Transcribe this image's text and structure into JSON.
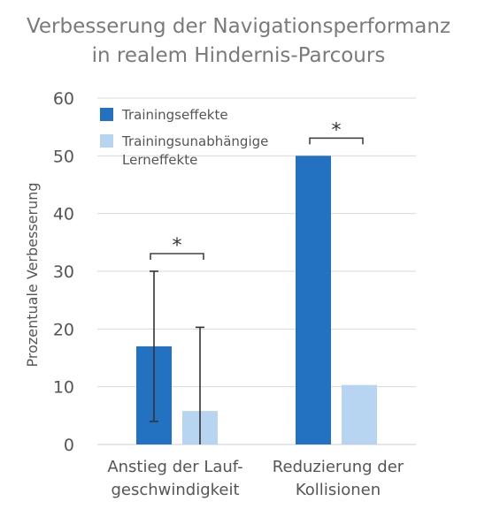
{
  "chart_data": {
    "type": "bar",
    "title_lines": [
      "Verbesserung der Navigationsperformanz",
      "in realem Hindernis-Parcours"
    ],
    "ylabel": "Prozentuale Verbesserung",
    "xlabel": "",
    "ylim": [
      0,
      60
    ],
    "yticks": [
      0,
      10,
      20,
      30,
      40,
      50,
      60
    ],
    "grid": true,
    "categories": [
      {
        "line1": "Anstieg der Lauf-",
        "line2": "geschwindigkeit"
      },
      {
        "line1": "Reduzierung der",
        "line2": "Kollisionen"
      }
    ],
    "series": [
      {
        "name": "Trainingseffekte",
        "name_lines": [
          "Trainingseffekte"
        ],
        "color": "#2371c1",
        "values": [
          17,
          50
        ],
        "error_upper": [
          30,
          null
        ],
        "error_lower": [
          4,
          null
        ]
      },
      {
        "name": "Trainingsunabhängige Lerneffekte",
        "name_lines": [
          "Trainingsunabhängige",
          "Lerneffekte"
        ],
        "color": "#b7d5f1",
        "values": [
          5.8,
          10.3
        ],
        "error_upper": [
          20.3,
          null
        ],
        "error_lower": [
          0,
          null
        ]
      }
    ],
    "significance": [
      {
        "category_index": 0,
        "label": "*"
      },
      {
        "category_index": 1,
        "label": "*"
      }
    ],
    "legend_position": "top-left"
  }
}
